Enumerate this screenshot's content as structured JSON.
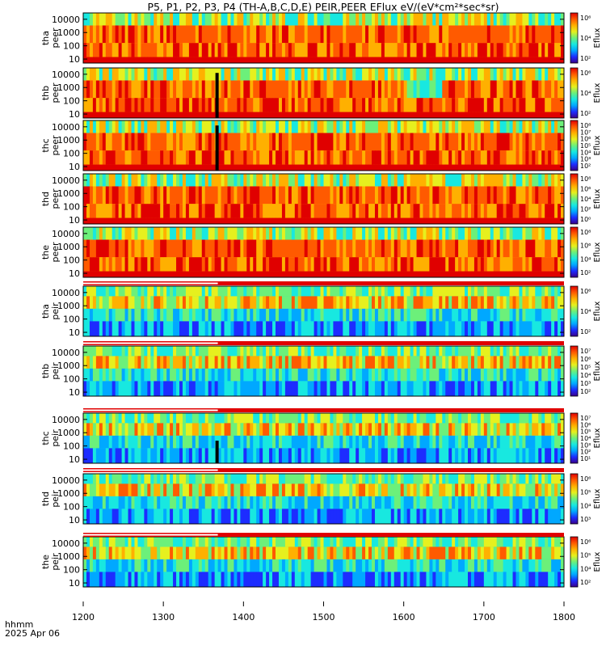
{
  "chart_data": {
    "type": "heatmap",
    "title": "P5, P1, P2, P3, P4 (TH-A,B,C,D,E) PEIR,PEER EFlux eV/(eV*cm²*sec*sr)",
    "x_label": "hhmm",
    "date_label": "2025 Apr 06",
    "x_range": [
      1200,
      1800
    ],
    "x_ticks": [
      "1200",
      "1300",
      "1400",
      "1500",
      "1600",
      "1700",
      "1800"
    ],
    "y_scale": "log",
    "y_range": [
      5,
      30000
    ],
    "y_tick_labels": [
      "10000",
      "1000",
      "100",
      "10"
    ],
    "colorbar_label": "Eflux",
    "colorscale": [
      "#3a008a",
      "#1d2cff",
      "#00a8ff",
      "#18e8e0",
      "#6cf07a",
      "#e6f01e",
      "#ffb000",
      "#ff5a00",
      "#e00000"
    ],
    "panels": [
      {
        "name": "tha peer",
        "label1": "tha",
        "label2": "peer",
        "cb_ticks": [
          "10⁶",
          "10⁴",
          "10²"
        ]
      },
      {
        "name": "thb peer",
        "label1": "thb",
        "label2": "peer",
        "cb_ticks": [
          "10⁶",
          "10⁴",
          "10²"
        ]
      },
      {
        "name": "thc peer",
        "label1": "thc",
        "label2": "peer",
        "cb_ticks": [
          "10⁸",
          "10⁷",
          "10⁶",
          "10⁵",
          "10⁴",
          "10³",
          "10²"
        ]
      },
      {
        "name": "thd peer",
        "label1": "thd",
        "label2": "peer",
        "cb_ticks": [
          "10⁸",
          "10⁶",
          "10⁴",
          "10²",
          "10⁰"
        ]
      },
      {
        "name": "the peer",
        "label1": "the",
        "label2": "peer",
        "cb_ticks": [
          "10⁸",
          "10⁶",
          "10⁴",
          "10²"
        ]
      },
      {
        "name": "tha peir",
        "label1": "tha",
        "label2": "peir",
        "cb_ticks": [
          "10⁶",
          "10⁴",
          "10²"
        ]
      },
      {
        "name": "thb peir",
        "label1": "thb",
        "label2": "peir",
        "cb_ticks": [
          "10⁷",
          "10⁶",
          "10⁵",
          "10⁴",
          "10³",
          "10²"
        ]
      },
      {
        "name": "thc peir",
        "label1": "thc",
        "label2": "peir",
        "cb_ticks": [
          "10⁷",
          "10⁶",
          "10⁵",
          "10⁴",
          "10³",
          "10²",
          "10¹"
        ]
      },
      {
        "name": "thd peir",
        "label1": "thd",
        "label2": "peir",
        "cb_ticks": [
          "10⁶",
          "10⁵",
          "10⁴",
          "10³"
        ]
      },
      {
        "name": "the peir",
        "label1": "the",
        "label2": "peir",
        "cb_ticks": [
          "10⁶",
          "10⁵",
          "10⁴",
          "10²"
        ]
      }
    ]
  }
}
